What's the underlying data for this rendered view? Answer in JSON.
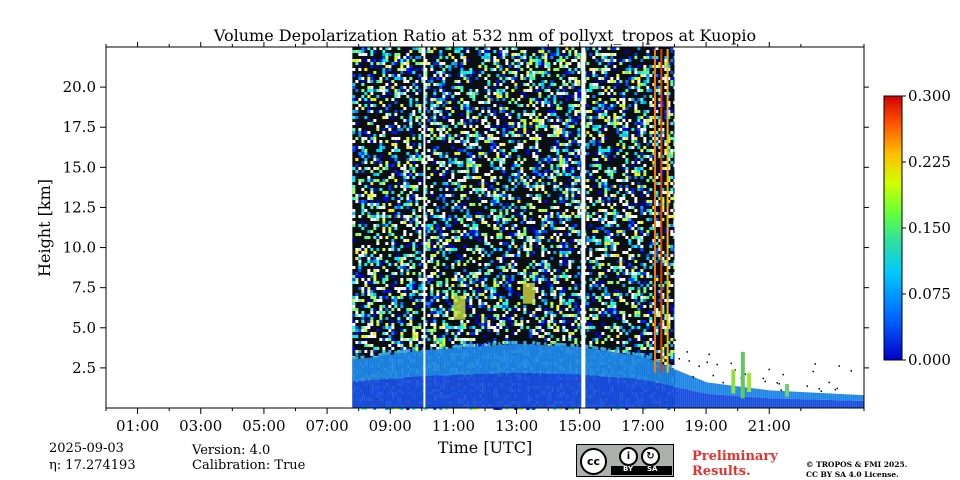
{
  "chart_data": {
    "type": "heatmap",
    "title": "Volume Depolarization Ratio at 532 nm of pollyxt_tropos at Kuopio",
    "xlabel": "Time [UTC]",
    "ylabel": "Height [km]",
    "xlim": [
      0,
      24
    ],
    "ylim": [
      0,
      22.5
    ],
    "x_ticks": [
      1,
      3,
      5,
      7,
      9,
      11,
      13,
      15,
      17,
      19,
      21
    ],
    "x_tick_labels": [
      "01:00",
      "03:00",
      "05:00",
      "07:00",
      "09:00",
      "11:00",
      "13:00",
      "15:00",
      "17:00",
      "19:00",
      "21:00"
    ],
    "y_ticks": [
      2.5,
      5.0,
      7.5,
      10.0,
      12.5,
      15.0,
      17.5,
      20.0
    ],
    "y_tick_labels": [
      "2.5",
      "5.0",
      "7.5",
      "10.0",
      "12.5",
      "15.0",
      "17.5",
      "20.0"
    ],
    "colorbar": {
      "range": [
        0.0,
        0.3
      ],
      "ticks": [
        0.0,
        0.075,
        0.15,
        0.225,
        0.3
      ],
      "tick_labels": [
        "0.000",
        "0.075",
        "0.150",
        "0.225",
        "0.300"
      ],
      "colormap": "jet"
    },
    "data_start_hour": 7.8,
    "data_end_hour": 24,
    "gap_hours": [
      10.05,
      15.05
    ],
    "noise_top_end_hour": 18.0,
    "boundary_layer_top_km": [
      {
        "hour": 7.8,
        "km": 3.0
      },
      {
        "hour": 10,
        "km": 3.6
      },
      {
        "hour": 13,
        "km": 4.0
      },
      {
        "hour": 15,
        "km": 3.8
      },
      {
        "hour": 17,
        "km": 3.2
      },
      {
        "hour": 19,
        "km": 1.6
      },
      {
        "hour": 21,
        "km": 1.1
      },
      {
        "hour": 24,
        "km": 0.8
      }
    ]
  },
  "footer": {
    "date": "2025-09-03",
    "eta": "η: 17.274193",
    "version": "Version: 4.0",
    "calibration": "Calibration: True",
    "preliminary_line1": "Preliminary",
    "preliminary_line2": "Results.",
    "copyright_line1": "© TROPOS & FMI 2025.",
    "copyright_line2": "CC BY SA 4.0 License.",
    "license_badge": {
      "cc": "cc",
      "by": "BY",
      "sa": "SA"
    }
  }
}
